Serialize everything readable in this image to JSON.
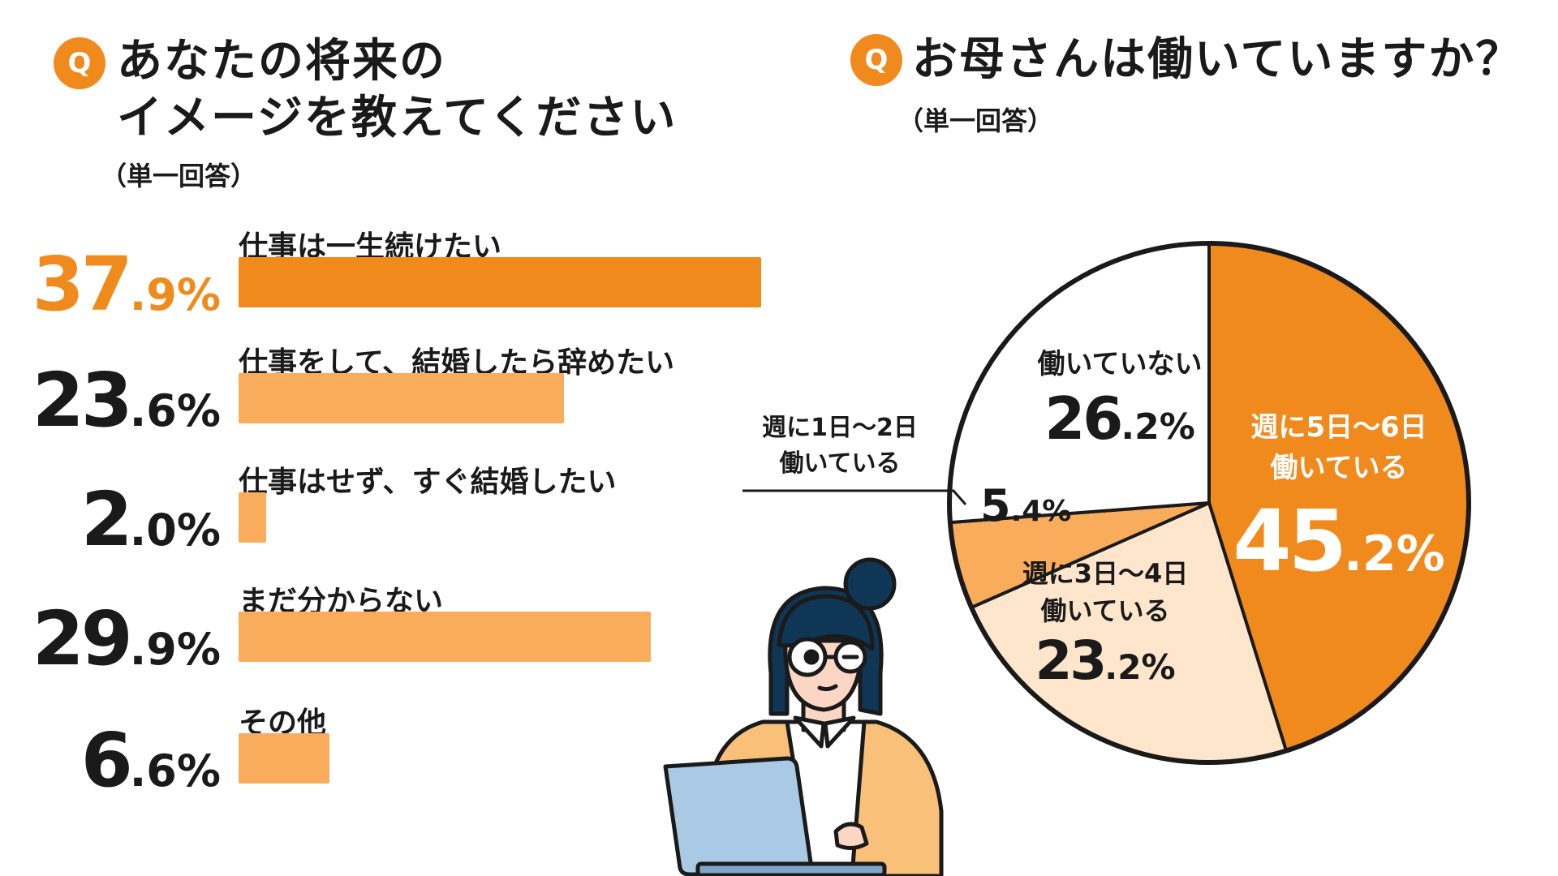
{
  "left": {
    "badge": "Q",
    "title_line1": "あなたの将来の",
    "title_line2": "イメージを教えてください",
    "subtitle": "（単一回答）"
  },
  "right": {
    "badge": "Q",
    "title": "お母さんは働いていますか？",
    "subtitle": "（単一回答）"
  },
  "colors": {
    "accent": "#f08a1d",
    "light": "#f9ad5c",
    "pale": "#fde6cc",
    "white": "#ffffff"
  },
  "chart_data": [
    {
      "type": "bar",
      "categories": [
        "仕事は一生続けたい",
        "仕事をして、結婚したら辞めたい",
        "仕事はせず、すぐ結婚したい",
        "まだ分からない",
        "その他"
      ],
      "values": [
        37.9,
        23.6,
        2.0,
        29.9,
        6.6
      ],
      "value_int": [
        "37",
        "23",
        "2",
        "29",
        "6"
      ],
      "value_dec": [
        ".9%",
        ".6%",
        ".0%",
        ".9%",
        ".6%"
      ]
    },
    {
      "type": "pie",
      "labels": [
        "週に5日〜6日働いている",
        "週に3日〜4日働いている",
        "週に1日〜2日働いている",
        "働いていない"
      ],
      "values": [
        45.2,
        23.2,
        5.4,
        26.2
      ],
      "label_lines": [
        [
          "週に5日〜6日",
          "働いている"
        ],
        [
          "週に3日〜4日",
          "働いている"
        ],
        [
          "週に1日〜2日",
          "働いている"
        ],
        [
          "働いていない"
        ]
      ],
      "value_int": [
        "45",
        "23",
        "5",
        "26"
      ],
      "value_dec": [
        ".2%",
        ".2%",
        ".4%",
        ".2%"
      ]
    }
  ]
}
